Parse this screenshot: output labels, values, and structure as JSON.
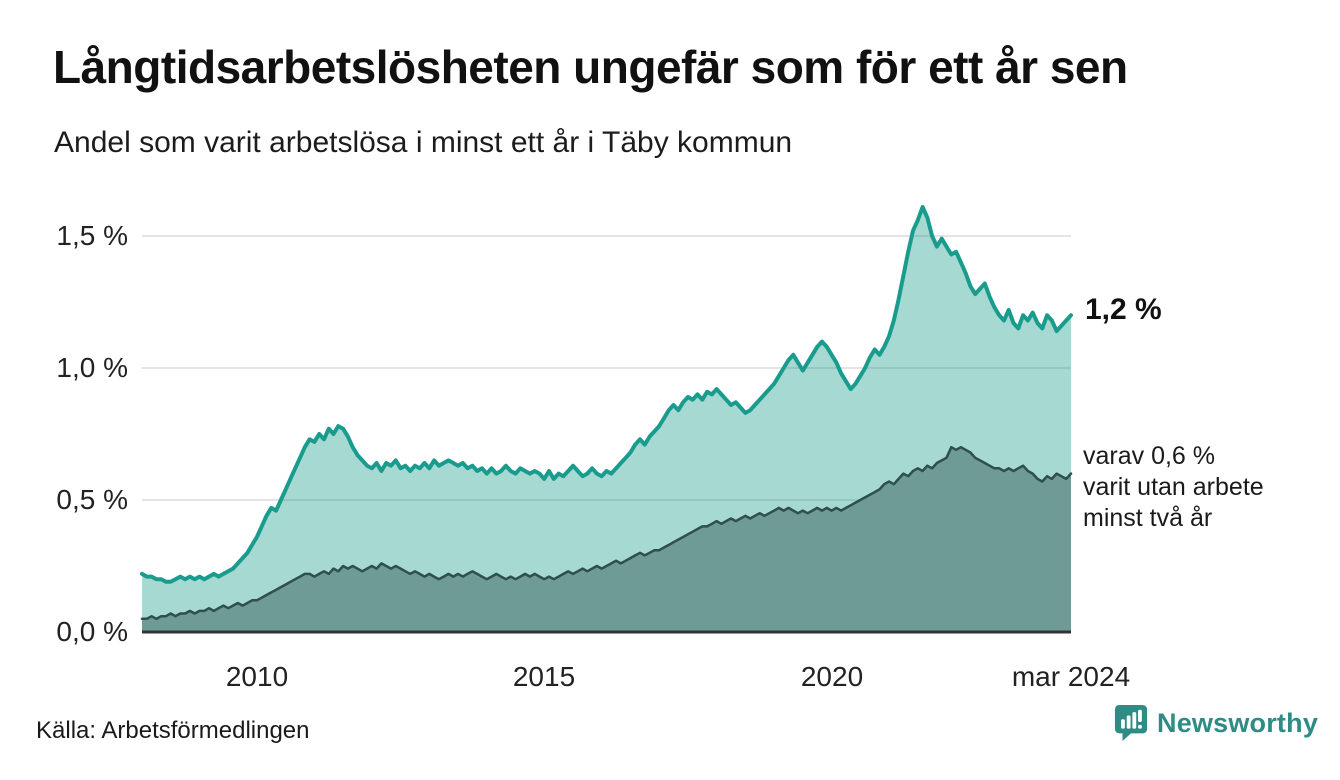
{
  "header": {
    "title": "Långtidsarbetslösheten ungefär som för ett år sen",
    "subtitle": "Andel som varit arbetslösa i minst ett år i Täby kommun"
  },
  "chart_data": {
    "type": "area",
    "title": "Långtidsarbetslösheten ungefär som för ett år sen",
    "subtitle": "Andel som varit arbetslösa i minst ett år i Täby kommun",
    "xlabel": "",
    "ylabel": "",
    "unit": "%",
    "x_start": "2008-01",
    "x_end": "2024-03",
    "frequency": "monthly",
    "ylim": [
      0,
      1.65
    ],
    "grid": "horizontal",
    "legend_position": "none",
    "y_ticks": [
      {
        "label": "0,0 %",
        "value": 0
      },
      {
        "label": "0,5 %",
        "value": 0.5
      },
      {
        "label": "1,0 %",
        "value": 1.0
      },
      {
        "label": "1,5 %",
        "value": 1.5
      }
    ],
    "x_ticks": [
      {
        "label": "2010",
        "month_index": 24
      },
      {
        "label": "2015",
        "month_index": 84
      },
      {
        "label": "2020",
        "month_index": 144
      },
      {
        "label": "mar 2024",
        "month_index": 194
      }
    ],
    "series": [
      {
        "key": "minst-ett-ar",
        "name": "Andel arbetslösa minst ett år",
        "end_label": "1,2 %",
        "end_value": 1.2,
        "color": "#199c8d",
        "fill": "rgba(23,154,139,0.38)",
        "line_width": 4,
        "values": [
          0.22,
          0.21,
          0.21,
          0.2,
          0.2,
          0.19,
          0.19,
          0.2,
          0.21,
          0.2,
          0.21,
          0.2,
          0.21,
          0.2,
          0.21,
          0.22,
          0.21,
          0.22,
          0.23,
          0.24,
          0.26,
          0.28,
          0.3,
          0.33,
          0.36,
          0.4,
          0.44,
          0.47,
          0.46,
          0.5,
          0.54,
          0.58,
          0.62,
          0.66,
          0.7,
          0.73,
          0.72,
          0.75,
          0.73,
          0.77,
          0.75,
          0.78,
          0.77,
          0.74,
          0.7,
          0.67,
          0.65,
          0.63,
          0.62,
          0.64,
          0.61,
          0.64,
          0.63,
          0.65,
          0.62,
          0.63,
          0.61,
          0.63,
          0.62,
          0.64,
          0.62,
          0.65,
          0.63,
          0.64,
          0.65,
          0.64,
          0.63,
          0.64,
          0.62,
          0.63,
          0.61,
          0.62,
          0.6,
          0.62,
          0.6,
          0.61,
          0.63,
          0.61,
          0.6,
          0.62,
          0.61,
          0.6,
          0.61,
          0.6,
          0.58,
          0.61,
          0.58,
          0.6,
          0.59,
          0.61,
          0.63,
          0.61,
          0.59,
          0.6,
          0.62,
          0.6,
          0.59,
          0.61,
          0.6,
          0.62,
          0.64,
          0.66,
          0.68,
          0.71,
          0.73,
          0.71,
          0.74,
          0.76,
          0.78,
          0.81,
          0.84,
          0.86,
          0.84,
          0.87,
          0.89,
          0.88,
          0.9,
          0.88,
          0.91,
          0.9,
          0.92,
          0.9,
          0.88,
          0.86,
          0.87,
          0.85,
          0.83,
          0.84,
          0.86,
          0.88,
          0.9,
          0.92,
          0.94,
          0.97,
          1.0,
          1.03,
          1.05,
          1.02,
          0.99,
          1.02,
          1.05,
          1.08,
          1.1,
          1.08,
          1.05,
          1.02,
          0.98,
          0.95,
          0.92,
          0.94,
          0.97,
          1.0,
          1.04,
          1.07,
          1.05,
          1.08,
          1.12,
          1.18,
          1.26,
          1.35,
          1.44,
          1.52,
          1.56,
          1.61,
          1.57,
          1.5,
          1.46,
          1.49,
          1.46,
          1.43,
          1.44,
          1.4,
          1.36,
          1.31,
          1.28,
          1.3,
          1.32,
          1.27,
          1.23,
          1.2,
          1.18,
          1.22,
          1.17,
          1.15,
          1.2,
          1.18,
          1.21,
          1.17,
          1.15,
          1.2,
          1.18,
          1.14,
          1.16,
          1.18,
          1.2
        ]
      },
      {
        "key": "minst-tva-ar",
        "name": "varav arbetslösa minst två år",
        "end_label": "varav 0,6 % varit utan arbete minst två år",
        "end_value": 0.6,
        "color": "#2f4f4b",
        "fill": "#6f9b97",
        "line_width": 2.5,
        "values": [
          0.05,
          0.05,
          0.06,
          0.05,
          0.06,
          0.06,
          0.07,
          0.06,
          0.07,
          0.07,
          0.08,
          0.07,
          0.08,
          0.08,
          0.09,
          0.08,
          0.09,
          0.1,
          0.09,
          0.1,
          0.11,
          0.1,
          0.11,
          0.12,
          0.12,
          0.13,
          0.14,
          0.15,
          0.16,
          0.17,
          0.18,
          0.19,
          0.2,
          0.21,
          0.22,
          0.22,
          0.21,
          0.22,
          0.23,
          0.22,
          0.24,
          0.23,
          0.25,
          0.24,
          0.25,
          0.24,
          0.23,
          0.24,
          0.25,
          0.24,
          0.26,
          0.25,
          0.24,
          0.25,
          0.24,
          0.23,
          0.22,
          0.23,
          0.22,
          0.21,
          0.22,
          0.21,
          0.2,
          0.21,
          0.22,
          0.21,
          0.22,
          0.21,
          0.22,
          0.23,
          0.22,
          0.21,
          0.2,
          0.21,
          0.22,
          0.21,
          0.2,
          0.21,
          0.2,
          0.21,
          0.22,
          0.21,
          0.22,
          0.21,
          0.2,
          0.21,
          0.2,
          0.21,
          0.22,
          0.23,
          0.22,
          0.23,
          0.24,
          0.23,
          0.24,
          0.25,
          0.24,
          0.25,
          0.26,
          0.27,
          0.26,
          0.27,
          0.28,
          0.29,
          0.3,
          0.29,
          0.3,
          0.31,
          0.31,
          0.32,
          0.33,
          0.34,
          0.35,
          0.36,
          0.37,
          0.38,
          0.39,
          0.4,
          0.4,
          0.41,
          0.42,
          0.41,
          0.42,
          0.43,
          0.42,
          0.43,
          0.44,
          0.43,
          0.44,
          0.45,
          0.44,
          0.45,
          0.46,
          0.47,
          0.46,
          0.47,
          0.46,
          0.45,
          0.46,
          0.45,
          0.46,
          0.47,
          0.46,
          0.47,
          0.46,
          0.47,
          0.46,
          0.47,
          0.48,
          0.49,
          0.5,
          0.51,
          0.52,
          0.53,
          0.54,
          0.56,
          0.57,
          0.56,
          0.58,
          0.6,
          0.59,
          0.61,
          0.62,
          0.61,
          0.63,
          0.62,
          0.64,
          0.65,
          0.66,
          0.7,
          0.69,
          0.7,
          0.69,
          0.68,
          0.66,
          0.65,
          0.64,
          0.63,
          0.62,
          0.62,
          0.61,
          0.62,
          0.61,
          0.62,
          0.63,
          0.61,
          0.6,
          0.58,
          0.57,
          0.59,
          0.58,
          0.6,
          0.59,
          0.58,
          0.6
        ]
      }
    ],
    "colors": {
      "gridline": "#e4e4e6",
      "baseline": "#333333",
      "text": "#222222"
    }
  },
  "annotations": {
    "end_value": "1,2 %",
    "secondary": [
      "varav 0,6 %",
      "varit utan arbete",
      "minst två år"
    ]
  },
  "footer": {
    "source": "Källa: Arbetsförmedlingen",
    "brand": "Newsworthy",
    "brand_color": "#2e8c85"
  }
}
